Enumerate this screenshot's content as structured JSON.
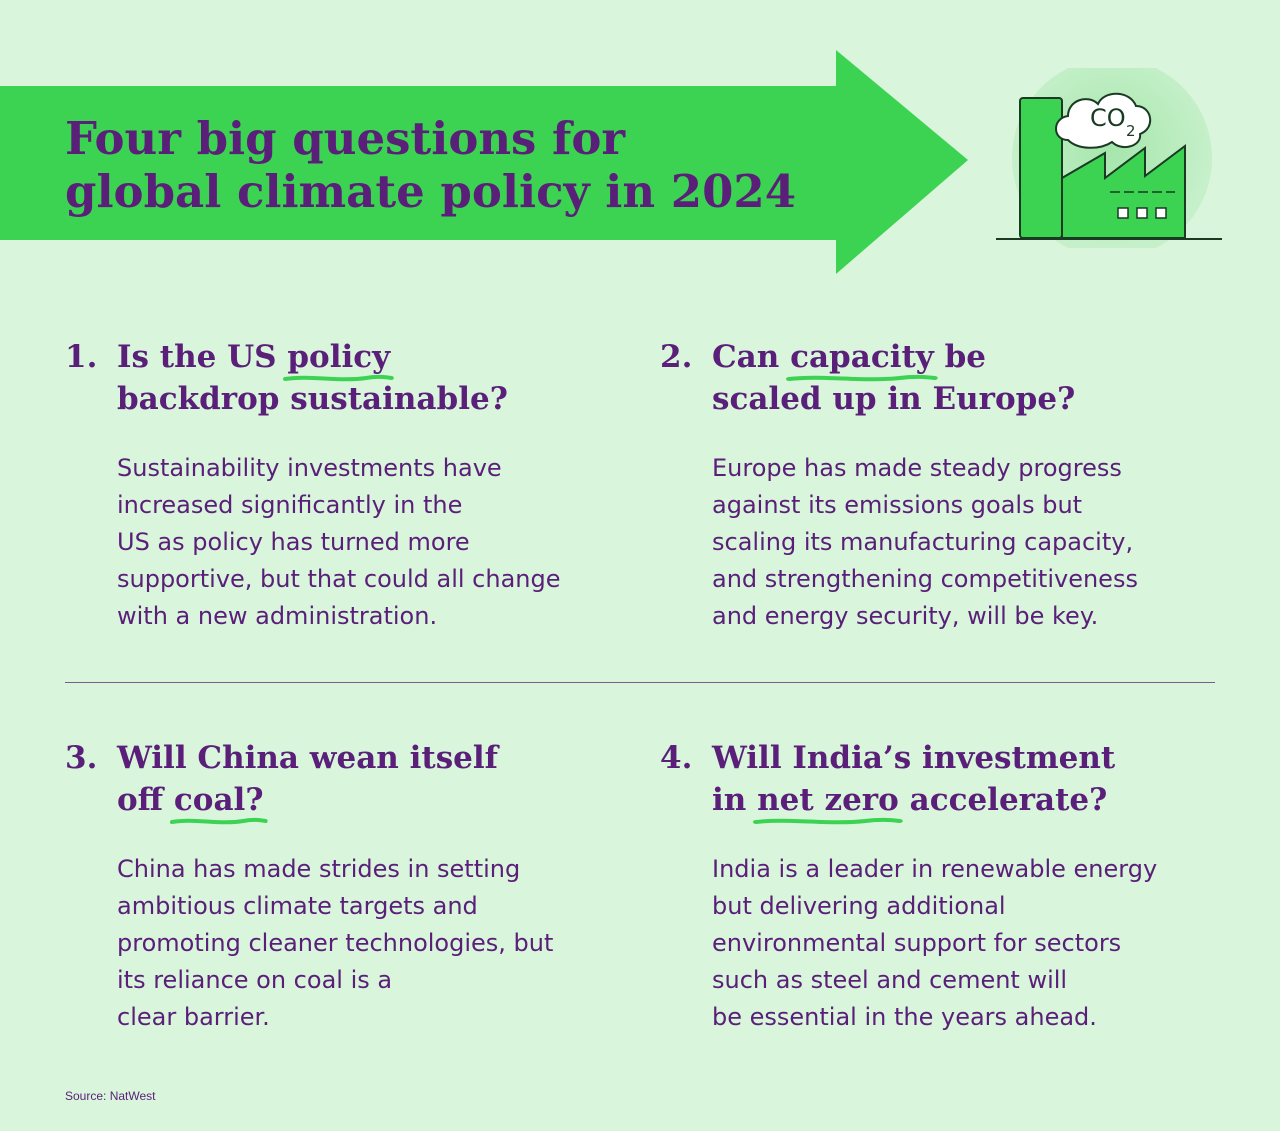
{
  "header": {
    "title_lines": [
      "Four big questions for",
      "global climate policy in 2024"
    ]
  },
  "illustration": {
    "icon": "factory-co2-icon",
    "cloud_label": "CO",
    "cloud_sub": "2",
    "colors": {
      "green": "#3cd352",
      "outline": "#1a3a24",
      "halo": "#b8ecbc"
    }
  },
  "questions": [
    {
      "number": "1.",
      "title": {
        "line1_pre": "Is the US ",
        "line1_hl": "policy",
        "line1_post": "",
        "line2_pre": "backdrop sustainable?",
        "line2_hl": "",
        "line2_post": ""
      },
      "body": [
        "Sustainability investments have",
        "increased significantly in the",
        "US as policy has turned more",
        "supportive, but that could all change",
        "with a new administration."
      ]
    },
    {
      "number": "2.",
      "title": {
        "line1_pre": "Can ",
        "line1_hl": "capacity",
        "line1_post": " be",
        "line2_pre": "scaled up in Europe?",
        "line2_hl": "",
        "line2_post": ""
      },
      "body": [
        "Europe has made steady progress",
        "against its emissions goals but",
        "scaling its manufacturing capacity,",
        "and strengthening competitiveness",
        "and energy security, will be key."
      ]
    },
    {
      "number": "3.",
      "title": {
        "line1_pre": "Will China wean itself",
        "line1_hl": "",
        "line1_post": "",
        "line2_pre": "off ",
        "line2_hl": "coal?",
        "line2_post": ""
      },
      "body": [
        "China has made strides in setting",
        "ambitious climate targets and",
        "promoting cleaner technologies, but",
        "its reliance on coal is a",
        "clear barrier."
      ]
    },
    {
      "number": "4.",
      "title": {
        "line1_pre": "Will India’s investment",
        "line1_hl": "",
        "line1_post": "",
        "line2_pre": "in ",
        "line2_hl": "net zero",
        "line2_post": " accelerate?"
      },
      "body": [
        "India is a leader in renewable energy",
        "but delivering additional",
        "environmental support for sectors",
        "such as steel and cement will",
        "be essential in the years ahead."
      ]
    }
  ],
  "footer": {
    "source": "Source: NatWest"
  },
  "colors": {
    "background": "#d9f5dc",
    "arrow": "#3cd352",
    "text": "#5a1f78",
    "divider": "#7c5a93"
  }
}
